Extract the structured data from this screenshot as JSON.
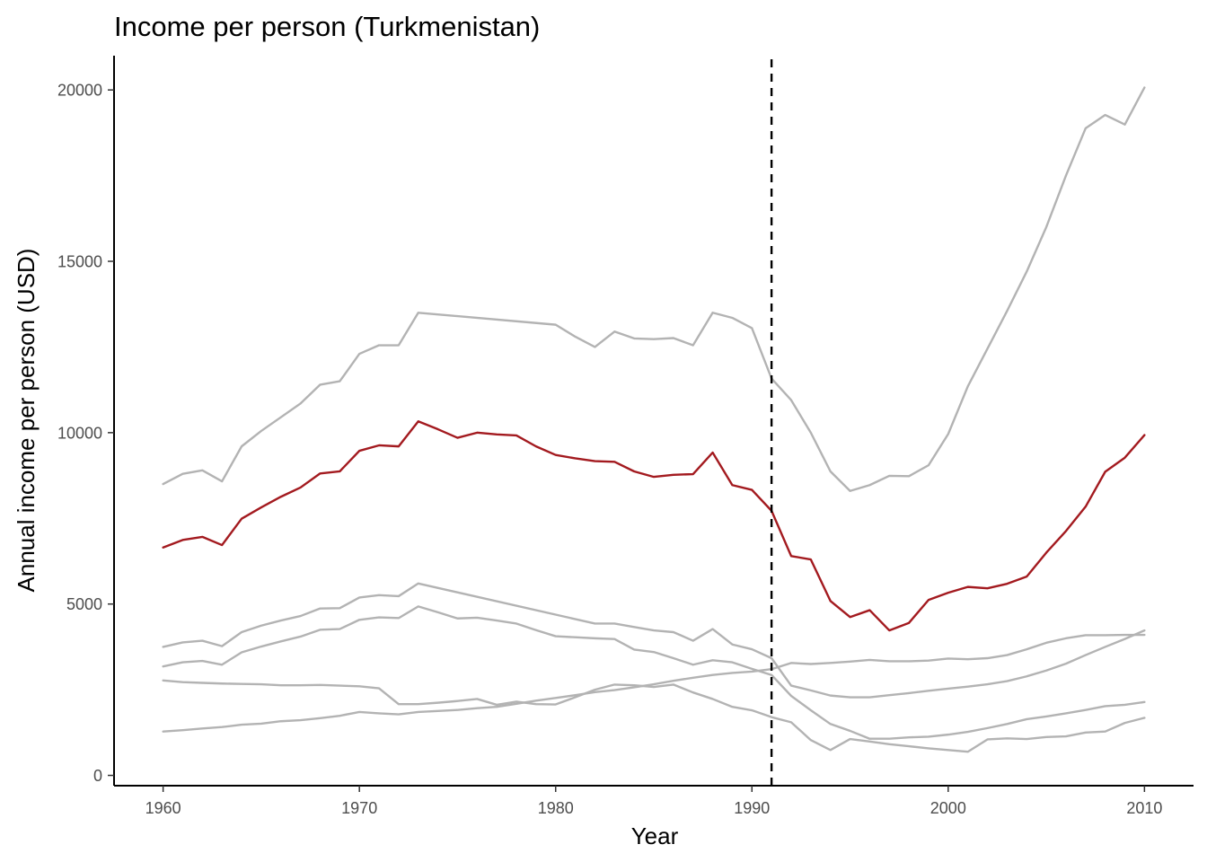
{
  "chart_data": {
    "type": "line",
    "title": "Income per person (Turkmenistan)",
    "xlabel": "Year",
    "ylabel": "Annual income per person (USD)",
    "xlim": [
      1957.5,
      2012.5
    ],
    "ylim": [
      -300,
      21000
    ],
    "x_ticks": [
      1960,
      1970,
      1980,
      1990,
      2000,
      2010
    ],
    "y_ticks": [
      0,
      5000,
      10000,
      15000,
      20000
    ],
    "grid": false,
    "legend": "none",
    "reference_line": {
      "x": 1991,
      "style": "dashed",
      "color": "#000000"
    },
    "colors": {
      "highlight": "#a31a1f",
      "background": "#b3b3b3"
    },
    "series": [
      {
        "color": "#b3b3b3",
        "x": [
          1960,
          1961,
          1962,
          1963,
          1964,
          1965,
          1966,
          1967,
          1968,
          1969,
          1970,
          1971,
          1972,
          1973,
          1980,
          1981,
          1982,
          1983,
          1984,
          1985,
          1986,
          1987,
          1988,
          1989,
          1990,
          1991,
          1992,
          1993,
          1994,
          1995,
          1996,
          1997,
          1998,
          1999,
          2000,
          2001,
          2002,
          2003,
          2004,
          2005,
          2006,
          2007,
          2008,
          2009,
          2010
        ],
        "values": [
          8500,
          8800,
          8900,
          8580,
          9600,
          10050,
          10450,
          10850,
          11400,
          11500,
          12300,
          12550,
          12550,
          13500,
          13150,
          12800,
          12500,
          12950,
          12750,
          12730,
          12760,
          12550,
          13500,
          13350,
          13050,
          11580,
          10950,
          10000,
          8870,
          8300,
          8470,
          8740,
          8730,
          9050,
          9960,
          11350,
          12450,
          13550,
          14700,
          16000,
          17500,
          18880,
          19270,
          18990,
          20070
        ]
      },
      {
        "color": "#a31a1f",
        "x": [
          1960,
          1961,
          1962,
          1963,
          1964,
          1965,
          1966,
          1967,
          1968,
          1969,
          1970,
          1971,
          1972,
          1973,
          1974,
          1975,
          1976,
          1977,
          1978,
          1979,
          1980,
          1981,
          1982,
          1983,
          1984,
          1985,
          1986,
          1987,
          1988,
          1989,
          1990,
          1991,
          1992,
          1993,
          1994,
          1995,
          1996,
          1997,
          1998,
          1999,
          2000,
          2001,
          2002,
          2003,
          2004,
          2005,
          2006,
          2007,
          2008,
          2009,
          2010
        ],
        "values": [
          6650,
          6870,
          6960,
          6720,
          7490,
          7820,
          8130,
          8400,
          8810,
          8870,
          9470,
          9630,
          9600,
          10330,
          10100,
          9850,
          10000,
          9950,
          9920,
          9600,
          9350,
          9250,
          9170,
          9150,
          8870,
          8710,
          8770,
          8790,
          9420,
          8470,
          8330,
          7720,
          6400,
          6300,
          5090,
          4620,
          4820,
          4230,
          4450,
          5120,
          5330,
          5500,
          5460,
          5590,
          5800,
          6500,
          7130,
          7840,
          8860,
          9270,
          9930
        ]
      },
      {
        "color": "#b3b3b3",
        "x": [
          1960,
          1961,
          1962,
          1963,
          1964,
          1965,
          1966,
          1967,
          1968,
          1969,
          1970,
          1971,
          1972,
          1973,
          1982,
          1983,
          1984,
          1985,
          1986,
          1987,
          1988,
          1989,
          1990,
          1991,
          1992,
          1993,
          1994,
          1995,
          1996,
          1997,
          1998,
          1999,
          2000,
          2001,
          2002,
          2003,
          2004,
          2005,
          2006,
          2007,
          2008,
          2009,
          2010
        ],
        "values": [
          3750,
          3880,
          3930,
          3770,
          4180,
          4370,
          4520,
          4650,
          4870,
          4880,
          5190,
          5260,
          5230,
          5600,
          4430,
          4430,
          4330,
          4230,
          4180,
          3930,
          4270,
          3820,
          3680,
          3420,
          2620,
          2480,
          2330,
          2280,
          2280,
          2340,
          2400,
          2470,
          2530,
          2590,
          2660,
          2750,
          2890,
          3060,
          3260,
          3510,
          3750,
          3980,
          4230
        ]
      },
      {
        "color": "#b3b3b3",
        "x": [
          1960,
          1961,
          1962,
          1963,
          1964,
          1965,
          1966,
          1967,
          1968,
          1969,
          1970,
          1971,
          1972,
          1973,
          1974,
          1975,
          1976,
          1977,
          1978,
          1979,
          1980,
          1981,
          1982,
          1983,
          1984,
          1985,
          1986,
          1987,
          1988,
          1989,
          1990,
          1991,
          1992,
          1993,
          1994,
          1995,
          1996,
          1997,
          1998,
          1999,
          2000,
          2001,
          2002,
          2003,
          2004,
          2005,
          2006,
          2007,
          2008,
          2009,
          2010
        ],
        "values": [
          3180,
          3300,
          3340,
          3230,
          3590,
          3760,
          3910,
          4050,
          4250,
          4270,
          4540,
          4610,
          4590,
          4930,
          4760,
          4580,
          4600,
          4520,
          4430,
          4240,
          4060,
          4030,
          4000,
          3980,
          3670,
          3600,
          3420,
          3230,
          3360,
          3300,
          3110,
          2930,
          2320,
          1900,
          1500,
          1300,
          1070,
          1070,
          1110,
          1130,
          1190,
          1270,
          1380,
          1500,
          1640,
          1720,
          1810,
          1910,
          2020,
          2060,
          2140
        ]
      },
      {
        "color": "#b3b3b3",
        "x": [
          1960,
          1961,
          1962,
          1963,
          1964,
          1965,
          1966,
          1967,
          1968,
          1969,
          1970,
          1971,
          1972,
          1973,
          1974,
          1975,
          1976,
          1977,
          1978,
          1979,
          1980,
          1981,
          1982,
          1983,
          1984,
          1985,
          1986,
          1987,
          1988,
          1989,
          1990,
          1991,
          1992,
          1993,
          1994,
          1995,
          1996,
          1997,
          1998,
          1999,
          2000,
          2001,
          2002,
          2003,
          2004,
          2005,
          2006,
          2007,
          2008,
          2009,
          2010
        ],
        "values": [
          2770,
          2720,
          2700,
          2680,
          2670,
          2660,
          2630,
          2630,
          2640,
          2620,
          2600,
          2540,
          2080,
          2080,
          2120,
          2170,
          2230,
          2060,
          2150,
          2080,
          2070,
          2280,
          2500,
          2650,
          2630,
          2580,
          2650,
          2420,
          2230,
          2000,
          1900,
          1700,
          1550,
          1030,
          740,
          1060,
          990,
          910,
          850,
          790,
          740,
          690,
          1050,
          1080,
          1060,
          1120,
          1140,
          1250,
          1280,
          1530,
          1680
        ]
      },
      {
        "color": "#b3b3b3",
        "x": [
          1960,
          1961,
          1962,
          1963,
          1964,
          1965,
          1966,
          1967,
          1968,
          1969,
          1970,
          1971,
          1972,
          1973,
          1974,
          1975,
          1976,
          1977,
          1978,
          1979,
          1980,
          1981,
          1982,
          1983,
          1984,
          1985,
          1986,
          1987,
          1988,
          1989,
          1990,
          1991,
          1992,
          1993,
          1994,
          1995,
          1996,
          1997,
          1998,
          1999,
          2000,
          2001,
          2002,
          2003,
          2004,
          2005,
          2006,
          2007,
          2008,
          2009,
          2010
        ],
        "values": [
          1280,
          1320,
          1370,
          1410,
          1480,
          1510,
          1580,
          1610,
          1670,
          1740,
          1850,
          1810,
          1780,
          1850,
          1880,
          1910,
          1960,
          2000,
          2090,
          2180,
          2260,
          2340,
          2430,
          2490,
          2570,
          2660,
          2760,
          2850,
          2930,
          2990,
          3030,
          3100,
          3280,
          3250,
          3280,
          3320,
          3370,
          3330,
          3330,
          3350,
          3410,
          3390,
          3420,
          3510,
          3680,
          3870,
          4000,
          4090,
          4090,
          4100,
          4100
        ]
      }
    ]
  }
}
